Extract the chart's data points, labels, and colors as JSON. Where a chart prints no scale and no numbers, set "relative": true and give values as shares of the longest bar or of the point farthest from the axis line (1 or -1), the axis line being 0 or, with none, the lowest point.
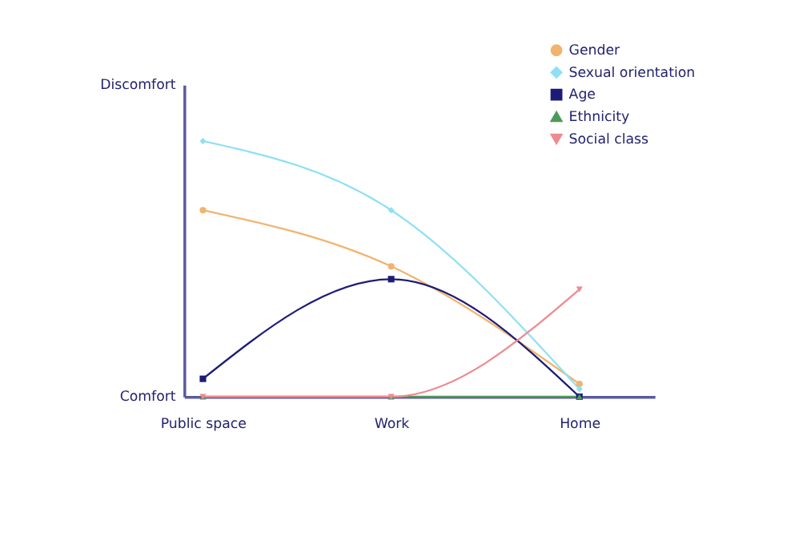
{
  "chart_data": {
    "type": "line",
    "relative": true,
    "categories": [
      "Public space",
      "Work",
      "Home"
    ],
    "series": [
      {
        "name": "Gender",
        "color": "#f2b36e",
        "marker": "circle",
        "values": [
          0.73,
          0.51,
          0.05
        ]
      },
      {
        "name": "Sexual orientation",
        "color": "#8fe0f2",
        "marker": "diamond",
        "values": [
          1,
          0.73,
          0.03
        ]
      },
      {
        "name": "Age",
        "color": "#1c1c78",
        "marker": "square",
        "values": [
          0.07,
          0.46,
          0
        ]
      },
      {
        "name": "Ethnicity",
        "color": "#4f9a5a",
        "marker": "triangle",
        "values": [
          0,
          0,
          0
        ]
      },
      {
        "name": "Social class",
        "color": "#ee8a90",
        "marker": "triangle-down",
        "values": [
          0,
          0,
          0.42
        ]
      }
    ],
    "annotations": [
      "Discomfort",
      "Comfort"
    ],
    "legend": "top right",
    "grid": false
  }
}
